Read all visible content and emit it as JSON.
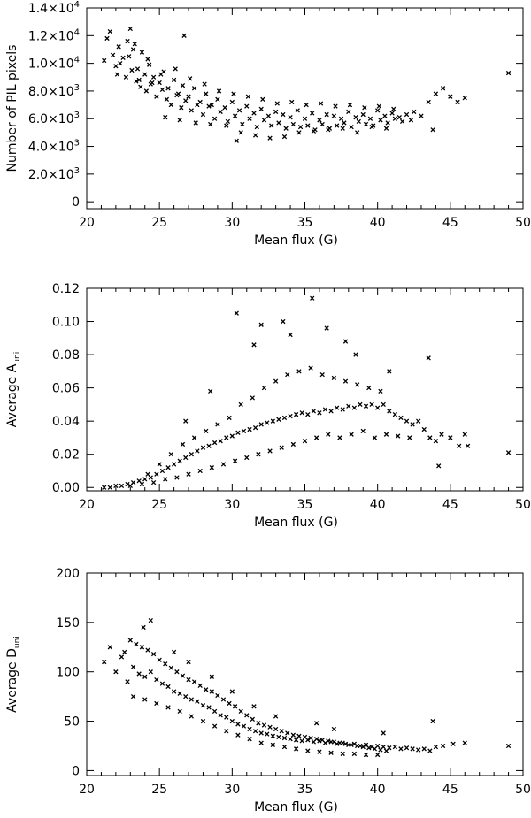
{
  "chart_data": [
    {
      "type": "scatter",
      "title": "",
      "xlabel": "Mean flux (G)",
      "ylabel": "Number of PIL pixels",
      "xlim": [
        20,
        50
      ],
      "ylim": [
        -500,
        14000
      ],
      "x_ticks": [
        20,
        25,
        30,
        35,
        40,
        45,
        50
      ],
      "x_tick_labels": [
        "20",
        "25",
        "30",
        "35",
        "40",
        "45",
        "50"
      ],
      "y_ticks": [
        0,
        2000,
        4000,
        6000,
        8000,
        10000,
        12000,
        14000
      ],
      "y_tick_labels": [
        {
          "mant": "0",
          "exp": ""
        },
        {
          "mant": "2.0×10",
          "exp": "3"
        },
        {
          "mant": "4.0×10",
          "exp": "3"
        },
        {
          "mant": "6.0×10",
          "exp": "3"
        },
        {
          "mant": "8.0×10",
          "exp": "3"
        },
        {
          "mant": "1.0×10",
          "exp": "4"
        },
        {
          "mant": "1.2×10",
          "exp": "4"
        },
        {
          "mant": "1.4×10",
          "exp": "4"
        }
      ],
      "grid": false,
      "series": [
        {
          "x": [
            21.2,
            21.4,
            21.6,
            21.8,
            22.0,
            22.2,
            22.5,
            22.8,
            23.0,
            23.2,
            23.5,
            23.8,
            24.0,
            24.3,
            24.6,
            25.0,
            25.3,
            25.6,
            26.0,
            26.3,
            26.6,
            27.0,
            27.4,
            27.8,
            28.2,
            28.6,
            29.0,
            29.5,
            30.0,
            30.5,
            31.0,
            31.5,
            32.0,
            32.5,
            33.0,
            33.5,
            34.0,
            34.5,
            35.0,
            35.5,
            36.0,
            36.5,
            37.0,
            37.5,
            38.0,
            38.5,
            39.0,
            39.5,
            40.0,
            40.5,
            41.0,
            41.5,
            42.0,
            42.5,
            43.0,
            43.5,
            44.0,
            44.5,
            45.0,
            45.5,
            46.0,
            49.0,
            22.3,
            22.7,
            23.1,
            23.4,
            23.7,
            24.1,
            24.5,
            24.8,
            25.2,
            25.5,
            25.8,
            26.2,
            26.5,
            26.8,
            27.2,
            27.6,
            28.0,
            28.4,
            28.8,
            29.2,
            29.7,
            30.2,
            30.7,
            31.2,
            31.7,
            32.2,
            32.7,
            33.2,
            33.7,
            34.2,
            34.7,
            35.2,
            35.7,
            36.2,
            36.7,
            37.2,
            37.7,
            38.2,
            38.7,
            39.2,
            39.7,
            40.2,
            40.7,
            41.2,
            41.7,
            42.3,
            23.3,
            24.2,
            25.1,
            26.1,
            27.1,
            28.1,
            29.1,
            30.1,
            31.1,
            32.1,
            33.1,
            34.1,
            35.1,
            36.1,
            37.1,
            38.1,
            39.1,
            40.1,
            41.1,
            23.6,
            24.4,
            25.4,
            26.4,
            27.5,
            28.5,
            29.6,
            30.6,
            31.6,
            32.6,
            33.6,
            34.6,
            35.6,
            36.6,
            37.6,
            38.6,
            39.6,
            40.6,
            22.1,
            22.9,
            26.7,
            30.3,
            43.8
          ],
          "y": [
            10200,
            11800,
            12300,
            10600,
            9800,
            11200,
            10400,
            11600,
            12500,
            11000,
            9600,
            10800,
            9200,
            9900,
            9000,
            8600,
            9400,
            8200,
            8800,
            7800,
            8400,
            7600,
            8200,
            7200,
            7800,
            7000,
            7400,
            6800,
            7200,
            6600,
            6900,
            6400,
            6700,
            6200,
            6500,
            6300,
            6100,
            6600,
            6000,
            6400,
            5900,
            6300,
            6200,
            6000,
            6500,
            6100,
            6300,
            6000,
            6600,
            6200,
            6400,
            6100,
            6300,
            6500,
            6200,
            7200,
            7800,
            8200,
            7600,
            7200,
            7500,
            9300,
            10000,
            9000,
            9500,
            8700,
            8300,
            8000,
            8600,
            7600,
            8100,
            7400,
            7000,
            7700,
            6800,
            7300,
            6600,
            7000,
            6300,
            6900,
            6000,
            6500,
            5800,
            6200,
            5600,
            6000,
            5400,
            5900,
            5500,
            5700,
            5300,
            5600,
            5400,
            5500,
            5200,
            5600,
            5300,
            5500,
            5700,
            5400,
            5800,
            5600,
            5500,
            5900,
            5700,
            6000,
            5800,
            5900,
            11400,
            10300,
            9200,
            9600,
            8900,
            8500,
            8000,
            7800,
            7600,
            7400,
            7100,
            7200,
            7000,
            7100,
            6900,
            7000,
            6800,
            6900,
            6700,
            8800,
            8500,
            6100,
            5900,
            5700,
            5600,
            5500,
            5000,
            4800,
            4600,
            4700,
            5000,
            5100,
            5200,
            5300,
            5000,
            5400,
            5300,
            9200,
            10500,
            12000,
            4400,
            5200
          ]
        }
      ]
    },
    {
      "type": "scatter",
      "title": "",
      "xlabel": "Mean flux (G)",
      "ylabel_main": "Average A",
      "ylabel_sub": "uni",
      "xlim": [
        20,
        50
      ],
      "ylim": [
        -0.002,
        0.12
      ],
      "x_ticks": [
        20,
        25,
        30,
        35,
        40,
        45,
        50
      ],
      "x_tick_labels": [
        "20",
        "25",
        "30",
        "35",
        "40",
        "45",
        "50"
      ],
      "y_ticks": [
        0,
        0.02,
        0.04,
        0.06,
        0.08,
        0.1,
        0.12
      ],
      "y_tick_labels": [
        "0.00",
        "0.02",
        "0.04",
        "0.06",
        "0.08",
        "0.10",
        "0.12"
      ],
      "grid": false,
      "series": [
        {
          "x": [
            21.2,
            21.6,
            22.0,
            22.4,
            22.8,
            23.2,
            23.6,
            24.0,
            24.4,
            24.8,
            25.2,
            25.6,
            26.0,
            26.4,
            26.8,
            27.2,
            27.6,
            28.0,
            28.4,
            28.8,
            29.2,
            29.6,
            30.0,
            30.4,
            30.8,
            31.2,
            31.6,
            32.0,
            32.4,
            32.8,
            33.2,
            33.6,
            34.0,
            34.4,
            34.8,
            35.2,
            35.6,
            36.0,
            36.4,
            36.8,
            37.2,
            37.6,
            38.0,
            38.4,
            38.8,
            39.2,
            39.6,
            40.0,
            40.4,
            40.8,
            41.2,
            41.6,
            42.0,
            42.4,
            42.8,
            43.2,
            43.6,
            44.0,
            44.4,
            45.0,
            45.6,
            46.2,
            49.0,
            23.0,
            23.8,
            24.6,
            25.4,
            26.2,
            27.0,
            27.8,
            28.6,
            29.4,
            30.2,
            31.0,
            31.8,
            32.6,
            33.4,
            34.2,
            35.0,
            35.8,
            36.6,
            37.4,
            38.2,
            39.0,
            39.8,
            40.6,
            41.4,
            42.2,
            24.2,
            25.0,
            25.8,
            26.6,
            27.4,
            28.2,
            29.0,
            29.8,
            30.6,
            31.4,
            32.2,
            33.0,
            33.8,
            34.6,
            35.4,
            36.2,
            37.0,
            37.8,
            38.6,
            39.4,
            40.2,
            30.3,
            32.0,
            34.0,
            35.5,
            36.5,
            37.8,
            43.5,
            44.2,
            46.0,
            26.8,
            28.5,
            31.5,
            33.5,
            38.5,
            40.8
          ],
          "y": [
            0.0,
            0.0,
            0.001,
            0.001,
            0.002,
            0.003,
            0.004,
            0.005,
            0.006,
            0.008,
            0.01,
            0.012,
            0.014,
            0.016,
            0.018,
            0.02,
            0.022,
            0.024,
            0.025,
            0.027,
            0.028,
            0.03,
            0.031,
            0.033,
            0.034,
            0.035,
            0.036,
            0.038,
            0.039,
            0.04,
            0.041,
            0.042,
            0.043,
            0.044,
            0.045,
            0.044,
            0.046,
            0.045,
            0.047,
            0.046,
            0.048,
            0.047,
            0.049,
            0.048,
            0.05,
            0.049,
            0.05,
            0.048,
            0.05,
            0.046,
            0.044,
            0.042,
            0.04,
            0.038,
            0.04,
            0.035,
            0.03,
            0.028,
            0.032,
            0.03,
            0.025,
            0.025,
            0.021,
            0.001,
            0.002,
            0.003,
            0.005,
            0.006,
            0.008,
            0.01,
            0.012,
            0.014,
            0.016,
            0.018,
            0.02,
            0.022,
            0.024,
            0.026,
            0.028,
            0.03,
            0.032,
            0.03,
            0.032,
            0.034,
            0.03,
            0.032,
            0.031,
            0.03,
            0.008,
            0.014,
            0.02,
            0.026,
            0.03,
            0.034,
            0.038,
            0.042,
            0.05,
            0.054,
            0.06,
            0.064,
            0.068,
            0.07,
            0.072,
            0.068,
            0.066,
            0.064,
            0.062,
            0.06,
            0.058,
            0.105,
            0.098,
            0.092,
            0.114,
            0.096,
            0.088,
            0.078,
            0.013,
            0.032,
            0.04,
            0.058,
            0.086,
            0.1,
            0.08,
            0.07
          ]
        }
      ]
    },
    {
      "type": "scatter",
      "title": "",
      "xlabel": "Mean flux (G)",
      "ylabel_main": "Average D",
      "ylabel_sub": "uni",
      "xlim": [
        20,
        50
      ],
      "ylim": [
        -5,
        200
      ],
      "x_ticks": [
        20,
        25,
        30,
        35,
        40,
        45,
        50
      ],
      "x_tick_labels": [
        "20",
        "25",
        "30",
        "35",
        "40",
        "45",
        "50"
      ],
      "y_ticks": [
        0,
        50,
        100,
        150,
        200
      ],
      "y_tick_labels": [
        "0",
        "50",
        "100",
        "150",
        "200"
      ],
      "grid": false,
      "series": [
        {
          "x": [
            21.2,
            21.6,
            22.0,
            22.4,
            22.8,
            23.2,
            23.6,
            24.0,
            24.4,
            24.8,
            25.2,
            25.6,
            26.0,
            26.4,
            26.8,
            27.2,
            27.6,
            28.0,
            28.4,
            28.8,
            29.2,
            29.6,
            30.0,
            30.4,
            30.8,
            31.2,
            31.6,
            32.0,
            32.4,
            32.8,
            33.2,
            33.6,
            34.0,
            34.4,
            34.8,
            35.2,
            35.6,
            36.0,
            36.4,
            36.8,
            37.2,
            37.6,
            38.0,
            38.4,
            38.8,
            39.2,
            39.6,
            40.0,
            40.4,
            40.8,
            41.2,
            41.6,
            42.0,
            42.4,
            42.8,
            43.2,
            43.6,
            44.0,
            44.5,
            45.2,
            46.0,
            49.0,
            22.6,
            23.0,
            23.4,
            23.8,
            24.2,
            24.6,
            25.0,
            25.4,
            25.8,
            26.2,
            26.6,
            27.0,
            27.4,
            27.8,
            28.2,
            28.6,
            29.0,
            29.4,
            29.8,
            30.2,
            30.6,
            31.0,
            31.4,
            31.8,
            32.2,
            32.6,
            33.0,
            33.4,
            33.8,
            34.2,
            34.6,
            35.0,
            35.4,
            35.8,
            36.2,
            36.6,
            37.0,
            37.4,
            37.8,
            38.2,
            38.6,
            39.0,
            39.4,
            39.8,
            40.2,
            40.6,
            23.2,
            24.0,
            24.8,
            25.6,
            26.4,
            27.2,
            28.0,
            28.8,
            29.6,
            30.4,
            31.2,
            32.0,
            32.8,
            33.6,
            34.4,
            35.2,
            36.0,
            36.8,
            37.6,
            38.4,
            39.2,
            40.0,
            23.9,
            24.4,
            26.0,
            27.0,
            28.6,
            30.0,
            31.5,
            33.0,
            35.8,
            37.0,
            40.4,
            43.8
          ],
          "y": [
            110,
            125,
            100,
            115,
            90,
            105,
            98,
            95,
            100,
            92,
            88,
            85,
            80,
            78,
            75,
            72,
            70,
            66,
            64,
            60,
            56,
            54,
            50,
            47,
            45,
            42,
            40,
            38,
            37,
            35,
            34,
            33,
            32,
            31,
            30,
            31,
            29,
            30,
            28,
            29,
            27,
            28,
            26,
            27,
            25,
            26,
            24,
            25,
            24,
            23,
            24,
            22,
            23,
            22,
            21,
            22,
            20,
            24,
            25,
            27,
            28,
            25,
            120,
            132,
            128,
            125,
            122,
            118,
            112,
            108,
            104,
            100,
            96,
            92,
            90,
            86,
            82,
            80,
            76,
            72,
            68,
            65,
            60,
            56,
            52,
            48,
            46,
            44,
            42,
            40,
            38,
            36,
            35,
            34,
            33,
            32,
            31,
            30,
            29,
            28,
            27,
            26,
            25,
            24,
            23,
            22,
            21,
            20,
            75,
            72,
            68,
            64,
            60,
            55,
            50,
            45,
            40,
            36,
            32,
            28,
            26,
            24,
            22,
            20,
            19,
            18,
            17,
            17,
            16,
            16,
            145,
            152,
            120,
            110,
            95,
            80,
            65,
            55,
            48,
            42,
            38,
            50
          ]
        }
      ]
    }
  ]
}
